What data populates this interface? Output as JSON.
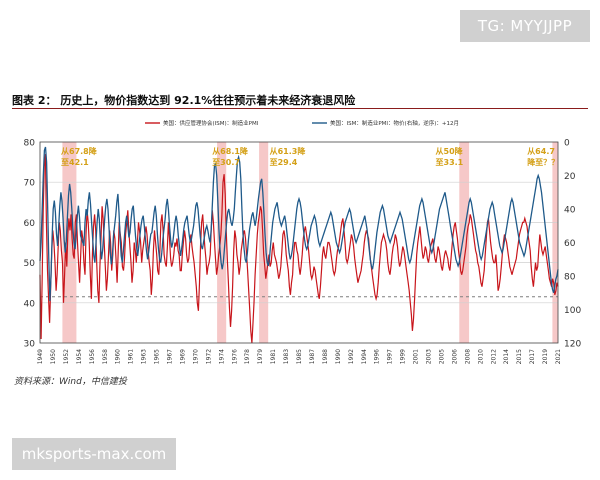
{
  "watermarks": {
    "top": "TG: MYYJJPP",
    "bottom": "mksports-max.com"
  },
  "figure": {
    "title": "图表 2： 历史上，物价指数达到 92.1%往往预示着未来经济衰退风险",
    "source": "资料来源：Wind，中信建投"
  },
  "colors": {
    "series_red": "#c8151b",
    "series_blue": "#1f5a8a",
    "band": "#f6c8c8",
    "grid": "#cfcfcf"
  },
  "chart_data": {
    "type": "line",
    "series": [
      {
        "name": "美国：供应管理协会(ISM)：制造业PMI",
        "axis": "left",
        "values": [
          47,
          31,
          45,
          63,
          74,
          77,
          60,
          48,
          41,
          35,
          44,
          53,
          58,
          55,
          50,
          43,
          47,
          54,
          60,
          58,
          53,
          50,
          40,
          47,
          55,
          49,
          57,
          61,
          58,
          62,
          56,
          52,
          51,
          60,
          62,
          55,
          50,
          45,
          52,
          58,
          56,
          50,
          47,
          57,
          63,
          60,
          55,
          47,
          41,
          52,
          59,
          62,
          58,
          50,
          43,
          40,
          49,
          56,
          64,
          61,
          55,
          49,
          43,
          46,
          52,
          58,
          55,
          48,
          52,
          58,
          56,
          51,
          45,
          52,
          60,
          57,
          55,
          49,
          48,
          51,
          57,
          60,
          63,
          58,
          54,
          50,
          45,
          48,
          55,
          53,
          50,
          55,
          60,
          58,
          55,
          50,
          53,
          55,
          57,
          59,
          57,
          53,
          50,
          48,
          42,
          46,
          53,
          58,
          55,
          52,
          48,
          47,
          53,
          60,
          62,
          58,
          52,
          50,
          49,
          54,
          60,
          56,
          51,
          49,
          50,
          52,
          55,
          54,
          56,
          53,
          52,
          48,
          48,
          52,
          55,
          58,
          56,
          52,
          50,
          51,
          55,
          57,
          54,
          52,
          50,
          47,
          44,
          40,
          38,
          45,
          54,
          60,
          62,
          58,
          54,
          51,
          47,
          49,
          50,
          52,
          58,
          63,
          60,
          55,
          51,
          47,
          49,
          52,
          54,
          57,
          62,
          70,
          72,
          67,
          58,
          51,
          45,
          39,
          34,
          38,
          44,
          53,
          58,
          56,
          52,
          50,
          47,
          49,
          53,
          55,
          57,
          58,
          56,
          52,
          48,
          43,
          38,
          33,
          30,
          35,
          40,
          47,
          52,
          57,
          60,
          62,
          64,
          63,
          58,
          52,
          49,
          46,
          48,
          50,
          52,
          49,
          50,
          53,
          55,
          52,
          51,
          50,
          48,
          46,
          47,
          49,
          53,
          57,
          58,
          56,
          52,
          50,
          48,
          44,
          42,
          45,
          47,
          52,
          55,
          55,
          53,
          52,
          49,
          47,
          49,
          52,
          56,
          58,
          59,
          57,
          55,
          53,
          50,
          47,
          46,
          47,
          49,
          48,
          46,
          44,
          42,
          41,
          44,
          48,
          52,
          54,
          52,
          51,
          53,
          55,
          55,
          54,
          52,
          50,
          48,
          47,
          48,
          51,
          53,
          54,
          56,
          58,
          60,
          61,
          58,
          55,
          51,
          50,
          51,
          53,
          55,
          57,
          56,
          54,
          51,
          49,
          47,
          45,
          46,
          47,
          48,
          50,
          52,
          55,
          57,
          58,
          57,
          56,
          53,
          50,
          48,
          46,
          44,
          42,
          41,
          42,
          45,
          49,
          52,
          55,
          56,
          57,
          56,
          55,
          53,
          50,
          48,
          47,
          49,
          52,
          54,
          55,
          57,
          56,
          54,
          51,
          49,
          50,
          52,
          54,
          53,
          51,
          49,
          47,
          45,
          43,
          40,
          37,
          33,
          36,
          41,
          47,
          52,
          55,
          57,
          59,
          56,
          53,
          51,
          52,
          54,
          53,
          51,
          50,
          52,
          54,
          55,
          56,
          53,
          51,
          50,
          52,
          54,
          53,
          51,
          49,
          48,
          50,
          52,
          53,
          52,
          51,
          49,
          48,
          51,
          54,
          57,
          59,
          60,
          58,
          56,
          53,
          51,
          48,
          47,
          48,
          50,
          52,
          54,
          57,
          59,
          60,
          62,
          61,
          59,
          57,
          55,
          53,
          52,
          50,
          49,
          47,
          45,
          44,
          46,
          48,
          52,
          56,
          60,
          61,
          58,
          55,
          53,
          51,
          50,
          50,
          52,
          48,
          43,
          44,
          46,
          49,
          52,
          55,
          57,
          56,
          55,
          53,
          51,
          49,
          48,
          47,
          48,
          49,
          50,
          51,
          53,
          55,
          57,
          58,
          59,
          60,
          60,
          61,
          60,
          59,
          57,
          55,
          53,
          49,
          46,
          44,
          47,
          50,
          48,
          49,
          53,
          57,
          55,
          53,
          52,
          53,
          54,
          52,
          50,
          48,
          46,
          45,
          44,
          46,
          45,
          42,
          43,
          45,
          44
        ]
      },
      {
        "name": "美国：ISM：制造业PMI：物价(右轴，逆序)：+12月",
        "axis": "right_inverted",
        "values": [
          71,
          60,
          40,
          20,
          5,
          3,
          12,
          40,
          70,
          95,
          80,
          57,
          40,
          35,
          42,
          55,
          62,
          50,
          38,
          30,
          35,
          45,
          58,
          66,
          59,
          45,
          32,
          25,
          30,
          40,
          52,
          60,
          64,
          55,
          44,
          38,
          45,
          56,
          58,
          60,
          62,
          48,
          40,
          44,
          35,
          30,
          37,
          48,
          58,
          68,
          72,
          60,
          48,
          40,
          46,
          60,
          70,
          65,
          55,
          45,
          38,
          34,
          40,
          52,
          66,
          73,
          68,
          56,
          50,
          44,
          36,
          31,
          42,
          57,
          68,
          72,
          65,
          56,
          48,
          44,
          50,
          57,
          54,
          46,
          40,
          38,
          47,
          56,
          63,
          68,
          62,
          56,
          50,
          46,
          44,
          50,
          58,
          65,
          70,
          66,
          60,
          55,
          54,
          48,
          42,
          38,
          44,
          55,
          64,
          70,
          72,
          66,
          58,
          52,
          46,
          38,
          34,
          40,
          50,
          58,
          63,
          60,
          54,
          48,
          44,
          48,
          56,
          62,
          68,
          64,
          58,
          52,
          48,
          46,
          44,
          50,
          56,
          60,
          58,
          54,
          50,
          44,
          38,
          36,
          40,
          48,
          56,
          62,
          64,
          60,
          56,
          52,
          50,
          53,
          57,
          60,
          52,
          38,
          24,
          14,
          13,
          20,
          35,
          52,
          64,
          72,
          76,
          72,
          64,
          56,
          48,
          42,
          40,
          44,
          48,
          50,
          46,
          40,
          30,
          20,
          11,
          9,
          12,
          22,
          40,
          55,
          64,
          70,
          72,
          66,
          58,
          52,
          48,
          44,
          42,
          46,
          50,
          46,
          40,
          34,
          29,
          24,
          22,
          30,
          42,
          55,
          66,
          72,
          74,
          70,
          62,
          55,
          48,
          44,
          40,
          38,
          36,
          40,
          45,
          48,
          50,
          48,
          46,
          44,
          48,
          54,
          60,
          66,
          70,
          68,
          64,
          58,
          52,
          46,
          40,
          36,
          34,
          36,
          40,
          46,
          52,
          58,
          62,
          64,
          62,
          58,
          54,
          50,
          48,
          46,
          44,
          46,
          50,
          56,
          60,
          62,
          60,
          58,
          56,
          54,
          52,
          50,
          48,
          46,
          44,
          42,
          44,
          48,
          52,
          56,
          60,
          62,
          64,
          66,
          64,
          60,
          56,
          52,
          48,
          46,
          44,
          42,
          40,
          42,
          46,
          50,
          54,
          58,
          60,
          58,
          56,
          54,
          52,
          50,
          48,
          46,
          44,
          48,
          52,
          58,
          64,
          70,
          74,
          76,
          72,
          66,
          60,
          54,
          50,
          46,
          42,
          40,
          38,
          40,
          44,
          48,
          52,
          56,
          58,
          60,
          58,
          56,
          54,
          52,
          50,
          48,
          46,
          44,
          42,
          44,
          46,
          50,
          54,
          58,
          62,
          66,
          70,
          72,
          70,
          66,
          62,
          58,
          54,
          50,
          46,
          42,
          38,
          36,
          34,
          36,
          40,
          44,
          48,
          52,
          56,
          60,
          64,
          66,
          64,
          60,
          56,
          52,
          48,
          44,
          40,
          38,
          36,
          34,
          32,
          30,
          34,
          38,
          42,
          46,
          50,
          54,
          58,
          62,
          66,
          70,
          72,
          74,
          72,
          68,
          64,
          60,
          56,
          52,
          48,
          44,
          40,
          36,
          34,
          36,
          40,
          44,
          48,
          52,
          56,
          60,
          64,
          68,
          70,
          68,
          64,
          60,
          56,
          52,
          48,
          44,
          40,
          38,
          36,
          38,
          42,
          46,
          50,
          54,
          58,
          62,
          64,
          66,
          64,
          60,
          56,
          52,
          48,
          44,
          40,
          36,
          34,
          36,
          40,
          44,
          48,
          52,
          56,
          60,
          62,
          64,
          66,
          68,
          66,
          62,
          58,
          54,
          50,
          46,
          42,
          38,
          34,
          30,
          26,
          22,
          20,
          22,
          26,
          30,
          36,
          42,
          48,
          54,
          60,
          66,
          72,
          78,
          84,
          88,
          90,
          86,
          82,
          80,
          76
        ]
      }
    ],
    "x_start": 1948,
    "x_end": 2022,
    "x_tick_labels": [
      "1949",
      "1950",
      "1952",
      "1954",
      "1956",
      "1958",
      "1960",
      "1961",
      "1963",
      "1965",
      "1967",
      "1969",
      "1970",
      "1972",
      "1974",
      "1976",
      "1978",
      "1979",
      "1981",
      "1983",
      "1985",
      "1987",
      "1988",
      "1990",
      "1992",
      "1994",
      "1996",
      "1997",
      "1999",
      "2001",
      "2003",
      "2005",
      "2006",
      "2008",
      "2010",
      "2012",
      "2014",
      "2015",
      "2017",
      "2019",
      "2021"
    ],
    "left_axis": {
      "min": 30,
      "max": 80,
      "ticks": [
        30,
        40,
        50,
        60,
        70,
        80
      ]
    },
    "right_axis": {
      "min": 0,
      "max": 120,
      "inverted": true,
      "ticks": [
        0,
        20,
        40,
        60,
        80,
        100,
        120
      ]
    },
    "bands": [
      [
        1951.2,
        1953.2
      ],
      [
        1973.3,
        1974.6
      ],
      [
        1979.3,
        1980.6
      ],
      [
        2007.9,
        2009.3
      ],
      [
        2021.2,
        2022.0
      ]
    ],
    "reference_line_left_value": 41.5,
    "annotations": [
      {
        "lines": [
          "从67.8降",
          "至42.1"
        ],
        "x": 1951.0,
        "y": 77
      },
      {
        "lines": [
          "从68.1降",
          "至30.7"
        ],
        "x": 1972.6,
        "y": 77
      },
      {
        "lines": [
          "从61.3降",
          "至29.4"
        ],
        "x": 1980.8,
        "y": 77
      },
      {
        "lines": [
          "从50降",
          "至33.1"
        ],
        "x": 2004.5,
        "y": 77
      },
      {
        "lines": [
          "从64.7",
          "降至？？"
        ],
        "x": 2017.6,
        "y": 77
      }
    ],
    "grid": true
  }
}
